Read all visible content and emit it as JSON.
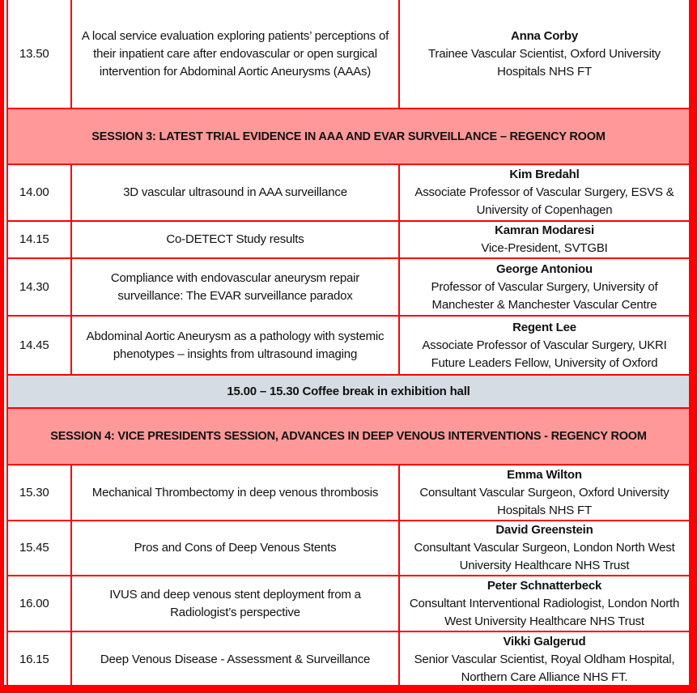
{
  "rows": [
    {
      "type": "talk",
      "time": "13.50",
      "title": "A local service evaluation exploring patients’ perceptions of their inpatient care after endovascular or open surgical intervention for Abdominal Aortic Aneurysms (AAAs)",
      "speaker": "Anna Corby",
      "role": "Trainee Vascular Scientist, Oxford University Hospitals NHS FT"
    },
    {
      "type": "session",
      "label": "SESSION 3: LATEST TRIAL EVIDENCE IN AAA AND EVAR SURVEILLANCE – REGENCY ROOM"
    },
    {
      "type": "talk",
      "time": "14.00",
      "title": "3D vascular ultrasound in AAA surveillance",
      "speaker": "Kim Bredahl",
      "role": "Associate Professor of Vascular Surgery, ESVS & University of Copenhagen"
    },
    {
      "type": "talk",
      "time": "14.15",
      "title": "Co-DETECT Study results",
      "speaker": "Kamran Modaresi",
      "role": "Vice-President, SVTGBI"
    },
    {
      "type": "talk",
      "time": "14.30",
      "title": "Compliance with endovascular aneurysm repair surveillance: The EVAR surveillance paradox",
      "speaker": "George Antoniou",
      "role": "Professor of Vascular Surgery, University of Manchester & Manchester Vascular Centre"
    },
    {
      "type": "talk",
      "time": "14.45",
      "title": "Abdominal Aortic Aneurysm as a pathology with systemic phenotypes – insights from ultrasound imaging",
      "speaker": "Regent Lee",
      "role": "Associate Professor of Vascular Surgery, UKRI Future Leaders Fellow, University of Oxford"
    },
    {
      "type": "break",
      "label": "15.00 – 15.30 Coffee break in exhibition hall"
    },
    {
      "type": "session",
      "label": "SESSION 4: VICE PRESIDENTS SESSION, ADVANCES IN DEEP VENOUS INTERVENTIONS - REGENCY ROOM"
    },
    {
      "type": "talk",
      "time": "15.30",
      "title": "Mechanical Thrombectomy in deep venous thrombosis",
      "speaker": "Emma Wilton",
      "role": "Consultant Vascular Surgeon, Oxford University Hospitals NHS FT"
    },
    {
      "type": "talk",
      "time": "15.45",
      "title": "Pros and Cons of Deep Venous Stents",
      "speaker": "David Greenstein",
      "role": "Consultant Vascular Surgeon, London North West University Healthcare NHS Trust"
    },
    {
      "type": "talk",
      "time": "16.00",
      "title": "IVUS and deep venous stent deployment from a Radiologist’s perspective",
      "speaker": "Peter Schnatterbeck",
      "role": "Consultant Interventional Radiologist, London North West University Healthcare NHS Trust"
    },
    {
      "type": "talk",
      "time": "16.15",
      "title": "Deep Venous Disease - Assessment & Surveillance",
      "speaker": "Vikki Galgerud",
      "role": "Senior Vascular Scientist, Royal Oldham Hospital, Northern Care Alliance NHS FT."
    }
  ],
  "colors": {
    "border": "#ff0000",
    "session_bg": "#ff9999",
    "break_bg": "#d6dce4"
  }
}
